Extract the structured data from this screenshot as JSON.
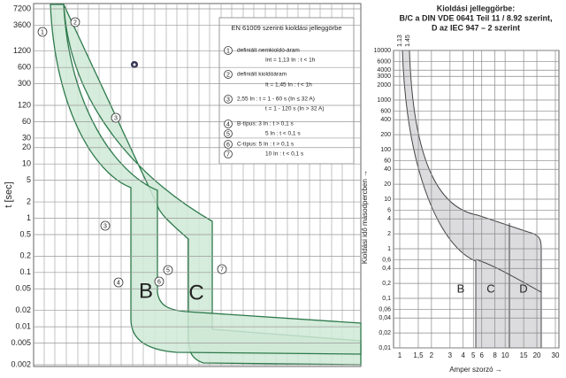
{
  "chart_data": [
    {
      "type": "line",
      "y_label": "t [sec]",
      "log_y": true,
      "grid": true,
      "ylim": [
        0.002,
        7200
      ],
      "yticks": [
        7200,
        3600,
        1200,
        600,
        300,
        120,
        60,
        30,
        20,
        10,
        5,
        2,
        1,
        0.5,
        0.2,
        0.1,
        0.05,
        0.02,
        0.01,
        0.005,
        0.002
      ],
      "legend_title": "EN 61009 szerinti kioldási jelleggörbe",
      "legend_items": [
        {
          "markers": [
            "1"
          ],
          "lines": [
            "definiált nemkioldó-áram",
            "Int = 1,13 In : t < 1h"
          ]
        },
        {
          "markers": [
            "2"
          ],
          "lines": [
            "definiált kioldóáram",
            "It = 1,45 In : t < 1h"
          ]
        },
        {
          "markers": [
            "3"
          ],
          "lines": [
            "2,55 In : t = 1 - 60 s (In ≤ 32 A)",
            "t = 1 - 120 s (In > 32 A)"
          ]
        },
        {
          "markers": [
            "4",
            "5"
          ],
          "lines": [
            "B-típus: 3 In : t > 0,1 s",
            "5 In : t < 0,1 s"
          ]
        },
        {
          "markers": [
            "6",
            "7"
          ],
          "lines": [
            "C-típus: 5 In : t > 0,1 s",
            "10 In : t < 0,1 s"
          ]
        }
      ],
      "curve_labels": [
        "B",
        "C"
      ],
      "point_markers": [
        "1",
        "2",
        "3",
        "3",
        "4",
        "5",
        "6",
        "7"
      ]
    },
    {
      "type": "line",
      "title": [
        "Kioldási jelleggörbe:",
        "B/C  a DIN VDE 0641 Teil 11 / 8.92 szerint,",
        "D az IEC 947 – 2 szerint"
      ],
      "y_label": "Kioldási idő másodpercben →",
      "x_label": "Amper szorzó →",
      "log_x": true,
      "log_y": true,
      "grid": true,
      "xlim": [
        1,
        30
      ],
      "ylim": [
        0.01,
        10000
      ],
      "xticks": [
        1,
        {
          "value": 1.5,
          "label": "1,5"
        },
        2,
        3,
        4,
        5,
        6,
        8,
        10,
        15,
        20,
        30
      ],
      "yticks": [
        10000,
        6000,
        4000,
        3000,
        2000,
        1000,
        600,
        400,
        200,
        100,
        60,
        40,
        20,
        10,
        6,
        4,
        2,
        1,
        {
          "value": 0.6,
          "label": "0,6"
        },
        {
          "value": 0.4,
          "label": "0,4"
        },
        {
          "value": 0.2,
          "label": "0,2"
        },
        {
          "value": 0.1,
          "label": "0,1"
        },
        {
          "value": 0.06,
          "label": "0,06"
        },
        {
          "value": 0.04,
          "label": "0,04"
        },
        {
          "value": 0.02,
          "label": "0,02"
        },
        {
          "value": 0.01,
          "label": "0,01"
        }
      ],
      "top_labels": [
        "1.13",
        "1.45"
      ],
      "curve_labels": [
        "B",
        "C",
        "D"
      ]
    }
  ]
}
